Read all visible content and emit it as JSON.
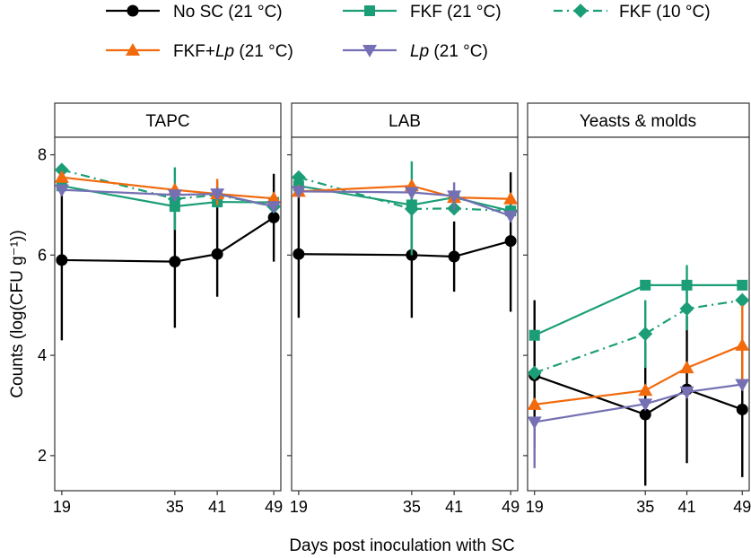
{
  "chart_data": {
    "type": "line",
    "xlabel": "Days post inoculation with SC",
    "ylabel": "Counts (log(CFU g⁻¹))",
    "x": [
      19,
      35,
      41,
      49
    ],
    "xlim": [
      18,
      50
    ],
    "ylim": [
      1.3,
      8.35
    ],
    "y_ticks": [
      2,
      4,
      6,
      8
    ],
    "x_ticks": [
      19,
      35,
      41,
      49
    ],
    "legend": {
      "position": "top",
      "entries": [
        {
          "series": "nosc",
          "label": "No SC (21 °C)"
        },
        {
          "series": "fkf21",
          "label": "FKF (21 °C)"
        },
        {
          "series": "fkf10",
          "label": "FKF (10 °C)"
        },
        {
          "series": "fkflp",
          "label_prefix": "FKF+",
          "label_italic": "Lp",
          "label_suffix": " (21 °C)"
        },
        {
          "series": "lp",
          "label_prefix": "",
          "label_italic": "Lp",
          "label_suffix": " (21 °C)"
        }
      ]
    },
    "series_styles": {
      "nosc": {
        "color": "#000000",
        "marker": "circle",
        "dash": "solid"
      },
      "fkf21": {
        "color": "#1b9e77",
        "marker": "square",
        "dash": "solid"
      },
      "fkf10": {
        "color": "#1b9e77",
        "marker": "diamond",
        "dash": "dotdash"
      },
      "fkflp": {
        "color": "#f26a0c",
        "marker": "triangle",
        "dash": "solid"
      },
      "lp": {
        "color": "#7570b3",
        "marker": "triangle-down",
        "dash": "solid"
      }
    },
    "panels": [
      {
        "title": "TAPC",
        "series": {
          "nosc": {
            "values": [
              5.9,
              5.87,
              6.02,
              6.75
            ],
            "err_lo": [
              4.3,
              4.55,
              5.17,
              5.87
            ],
            "err_hi": [
              7.45,
              7.2,
              7.0,
              7.62
            ]
          },
          "fkf21": {
            "values": [
              7.38,
              6.97,
              7.06,
              7.05
            ],
            "err_lo": [
              7.2,
              6.87,
              6.95,
              6.95
            ],
            "err_hi": [
              7.55,
              7.07,
              7.17,
              7.15
            ]
          },
          "fkf10": {
            "values": [
              7.7,
              7.12,
              7.2,
              6.97
            ],
            "err_lo": [
              7.6,
              6.5,
              6.95,
              6.85
            ],
            "err_hi": [
              7.8,
              7.75,
              7.45,
              7.1
            ]
          },
          "fkflp": {
            "values": [
              7.55,
              7.3,
              7.22,
              7.13
            ],
            "err_lo": [
              7.45,
              7.2,
              7.0,
              7.05
            ],
            "err_hi": [
              7.65,
              7.4,
              7.52,
              7.22
            ]
          },
          "lp": {
            "values": [
              7.3,
              7.2,
              7.22,
              6.97
            ],
            "err_lo": [
              7.2,
              7.1,
              7.1,
              6.9
            ],
            "err_hi": [
              7.4,
              7.3,
              7.35,
              7.05
            ]
          }
        }
      },
      {
        "title": "LAB",
        "series": {
          "nosc": {
            "values": [
              6.02,
              6.0,
              5.97,
              6.28
            ],
            "err_lo": [
              4.75,
              4.75,
              5.27,
              4.87
            ],
            "err_hi": [
              7.3,
              7.25,
              6.67,
              7.65
            ]
          },
          "fkf21": {
            "values": [
              7.38,
              7.0,
              7.15,
              6.88
            ],
            "err_lo": [
              7.3,
              6.9,
              7.05,
              6.8
            ],
            "err_hi": [
              7.46,
              7.1,
              7.25,
              6.96
            ]
          },
          "fkf10": {
            "values": [
              7.55,
              6.92,
              6.93,
              6.88
            ],
            "err_lo": [
              7.45,
              6.0,
              6.85,
              6.8
            ],
            "err_hi": [
              7.65,
              7.87,
              7.05,
              6.96
            ]
          },
          "fkflp": {
            "values": [
              7.27,
              7.38,
              7.15,
              7.12
            ],
            "err_lo": [
              7.17,
              7.28,
              7.05,
              7.02
            ],
            "err_hi": [
              7.37,
              7.48,
              7.25,
              7.22
            ]
          },
          "lp": {
            "values": [
              7.27,
              7.25,
              7.18,
              6.78
            ],
            "err_lo": [
              7.17,
              7.15,
              6.9,
              6.68
            ],
            "err_hi": [
              7.37,
              7.35,
              7.45,
              6.88
            ]
          }
        }
      },
      {
        "title": "Yeasts & molds",
        "series": {
          "nosc": {
            "values": [
              3.6,
              2.82,
              3.32,
              2.92
            ],
            "err_lo": [
              2.15,
              1.4,
              1.85,
              1.57
            ],
            "err_hi": [
              5.1,
              4.25,
              4.78,
              4.25
            ]
          },
          "fkf21": {
            "values": [
              4.4,
              5.4,
              5.4,
              5.4
            ],
            "err_lo": [
              4.3,
              5.3,
              5.0,
              5.3
            ],
            "err_hi": [
              4.5,
              5.5,
              5.8,
              5.5
            ]
          },
          "fkf10": {
            "values": [
              3.65,
              4.43,
              4.93,
              5.1
            ],
            "err_lo": [
              3.55,
              3.75,
              4.5,
              5.0
            ],
            "err_hi": [
              3.75,
              5.1,
              5.35,
              5.2
            ]
          },
          "fkflp": {
            "values": [
              3.02,
              3.3,
              3.75,
              4.2
            ],
            "err_lo": [
              2.92,
              3.2,
              3.65,
              3.4
            ],
            "err_hi": [
              3.12,
              3.4,
              3.85,
              5.0
            ]
          },
          "lp": {
            "values": [
              2.67,
              3.03,
              3.27,
              3.42
            ],
            "err_lo": [
              1.75,
              2.93,
              3.17,
              3.32
            ],
            "err_hi": [
              2.77,
              3.13,
              3.37,
              3.52
            ]
          }
        }
      }
    ]
  }
}
